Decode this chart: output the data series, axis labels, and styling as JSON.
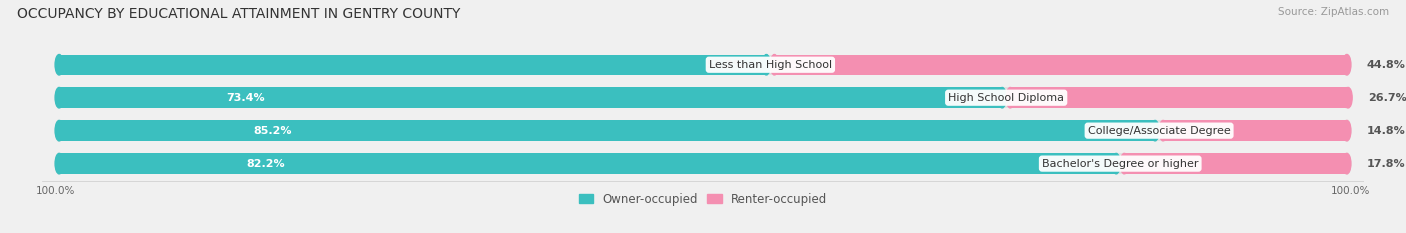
{
  "title": "OCCUPANCY BY EDUCATIONAL ATTAINMENT IN GENTRY COUNTY",
  "source": "Source: ZipAtlas.com",
  "categories": [
    "Less than High School",
    "High School Diploma",
    "College/Associate Degree",
    "Bachelor's Degree or higher"
  ],
  "owner_values": [
    55.2,
    73.4,
    85.2,
    82.2
  ],
  "renter_values": [
    44.8,
    26.7,
    14.8,
    17.8
  ],
  "owner_color": "#3BBFBF",
  "renter_color": "#F48FB1",
  "bg_color": "#f0f0f0",
  "bar_bg_color": "#e0e0e0",
  "bar_bg_color2": "#e8e8e8",
  "title_fontsize": 10,
  "source_fontsize": 7.5,
  "label_fontsize": 8,
  "cat_fontsize": 8,
  "legend_fontsize": 8.5,
  "axis_label_fontsize": 7.5
}
